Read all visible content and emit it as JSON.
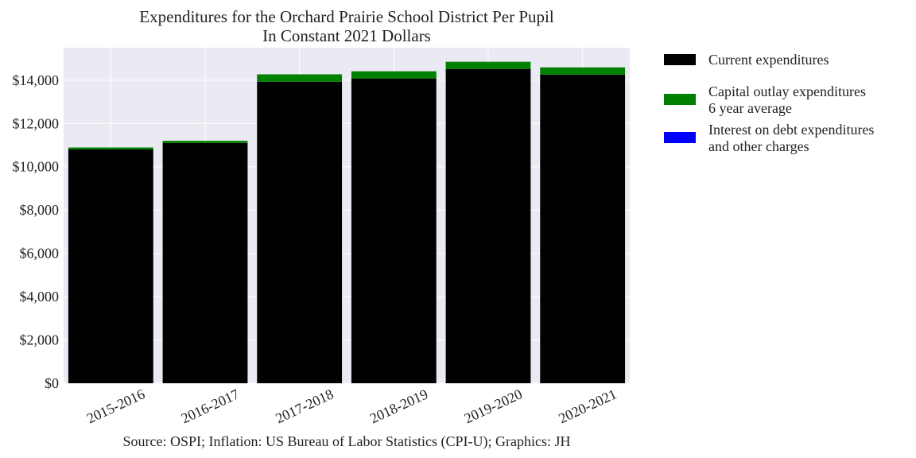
{
  "chart_data": {
    "type": "bar",
    "stacked": true,
    "title": "Expenditures for the Orchard Prairie School District Per Pupil",
    "subtitle": "In Constant 2021 Dollars",
    "categories": [
      "2015-2016",
      "2016-2017",
      "2017-2018",
      "2018-2019",
      "2019-2020",
      "2020-2021"
    ],
    "series": [
      {
        "name": "Current expenditures",
        "color": "#000000",
        "values": [
          10800,
          11100,
          13930,
          14080,
          14520,
          14260
        ]
      },
      {
        "name": "Capital outlay expenditures\n6 year average",
        "color": "#008000",
        "values": [
          90,
          100,
          340,
          330,
          330,
          330
        ]
      },
      {
        "name": "Interest on debt expenditures\nand other charges",
        "color": "#0000ff",
        "values": [
          0,
          0,
          0,
          0,
          0,
          0
        ]
      }
    ],
    "ylim": [
      0,
      15500
    ],
    "yticks": [
      0,
      2000,
      4000,
      6000,
      8000,
      10000,
      12000,
      14000
    ],
    "ytick_labels": [
      "$0",
      "$2,000",
      "$4,000",
      "$6,000",
      "$8,000",
      "$10,000",
      "$12,000",
      "$14,000"
    ],
    "grid": true,
    "legend_position": "outside-right",
    "background_color": "#eaeaf2",
    "source_note": "Source: OSPI; Inflation: US Bureau of Labor Statistics (CPI-U); Graphics: JH"
  }
}
